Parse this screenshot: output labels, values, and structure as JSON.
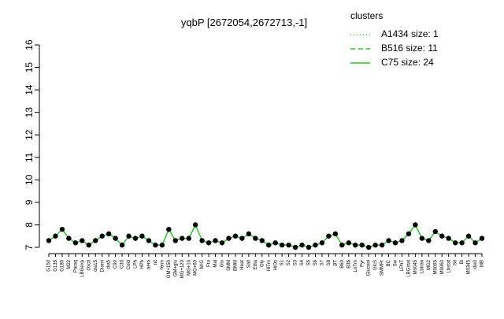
{
  "chart_data": {
    "type": "line",
    "title": "yqbP [2672054,2672713,-1]",
    "legend": {
      "title": "clusters",
      "color": "#22cc22",
      "entries": [
        {
          "label": "A1434 size: 1",
          "dash": "1,3"
        },
        {
          "label": "B516 size: 11",
          "dash": "6,4"
        },
        {
          "label": "C75 size: 24",
          "dash": "none"
        }
      ]
    },
    "categories": [
      "G150",
      "G135",
      "G180",
      "M22",
      "Paraq",
      "LBGexp",
      "Oxctl",
      "dia15",
      "Diami",
      "dia5",
      "C90",
      "C30",
      "Cold",
      "LPh",
      "HPh",
      "aero",
      "nit",
      "ferm",
      "GM+150",
      "GM+glu",
      "MG+120",
      "MG+10",
      "MG+60",
      "M/G",
      "Fru",
      "Mal",
      "Glu",
      "SMM",
      "BMM",
      "Heat",
      "Salt",
      "Etha",
      "Gly",
      "HiTm",
      "HiOs",
      "S1",
      "S2",
      "S3",
      "S4",
      "S5",
      "S6",
      "S7",
      "S8",
      "BT",
      "B60",
      "B36",
      "LoTm",
      "Pyr",
      "Gluconi",
      "GlcS",
      "SMMPr",
      "BC",
      "Sw",
      "LPhT",
      "LBGstat",
      "M0045",
      "Lbtran",
      "MG2",
      "M0095",
      "M0060",
      "Lbstat",
      "Sti",
      "Bl",
      "M0345",
      "dia0",
      "MB"
    ],
    "values": [
      7.3,
      7.5,
      7.8,
      7.4,
      7.2,
      7.3,
      7.1,
      7.3,
      7.5,
      7.6,
      7.4,
      7.1,
      7.5,
      7.4,
      7.5,
      7.3,
      7.1,
      7.1,
      7.8,
      7.3,
      7.4,
      7.4,
      8.0,
      7.3,
      7.2,
      7.3,
      7.2,
      7.4,
      7.5,
      7.4,
      7.6,
      7.4,
      7.3,
      7.1,
      7.2,
      7.1,
      7.1,
      7.0,
      7.1,
      7.0,
      7.1,
      7.2,
      7.5,
      7.6,
      7.1,
      7.2,
      7.1,
      7.1,
      7.0,
      7.1,
      7.1,
      7.3,
      7.2,
      7.3,
      7.6,
      8.0,
      7.4,
      7.3,
      7.7,
      7.5,
      7.4,
      7.2,
      7.2,
      7.5,
      7.2,
      7.4
    ],
    "color": "#22cc22",
    "point_color": "#000000",
    "ylim": [
      7,
      16
    ],
    "yticks": [
      7,
      8,
      9,
      10,
      11,
      12,
      13,
      14,
      15,
      16
    ]
  }
}
